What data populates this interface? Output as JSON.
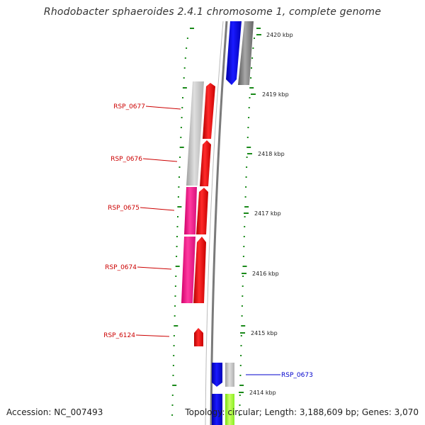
{
  "title": "Rhodobacter sphaeroides 2.4.1 chromosome 1, complete genome",
  "footer": {
    "accession": "Accession: NC_007493",
    "summary": "Topology: circular; Length: 3,188,609 bp; Genes: 3,070"
  },
  "colors": {
    "tick": "#1a8a1a",
    "backbone": "#8a8a8a",
    "gene_red": "#ff0000",
    "gene_blue": "#0000ff",
    "gene_gray": "#9a9a9a",
    "gene_silver": "#c8c8c8",
    "gene_magenta": "#ff1493",
    "gene_lime": "#99ff33",
    "label_red": "#cc0000",
    "label_blue": "#0000cc"
  },
  "scale_ticks": [
    {
      "kbp": 2420,
      "label": "2420 kbp"
    },
    {
      "kbp": 2419,
      "label": "2419 kbp"
    },
    {
      "kbp": 2418,
      "label": "2418 kbp"
    },
    {
      "kbp": 2417,
      "label": "2417 kbp"
    },
    {
      "kbp": 2416,
      "label": "2416 kbp"
    },
    {
      "kbp": 2415,
      "label": "2415 kbp"
    },
    {
      "kbp": 2414,
      "label": "2414 kbp"
    }
  ],
  "gene_labels": [
    {
      "name": "RSP_0677",
      "color": "#cc0000"
    },
    {
      "name": "RSP_0676",
      "color": "#cc0000"
    },
    {
      "name": "RSP_0675",
      "color": "#cc0000"
    },
    {
      "name": "RSP_0674",
      "color": "#cc0000"
    },
    {
      "name": "RSP_6124",
      "color": "#cc0000"
    },
    {
      "name": "RSP_0673",
      "color": "#0000cc"
    }
  ]
}
